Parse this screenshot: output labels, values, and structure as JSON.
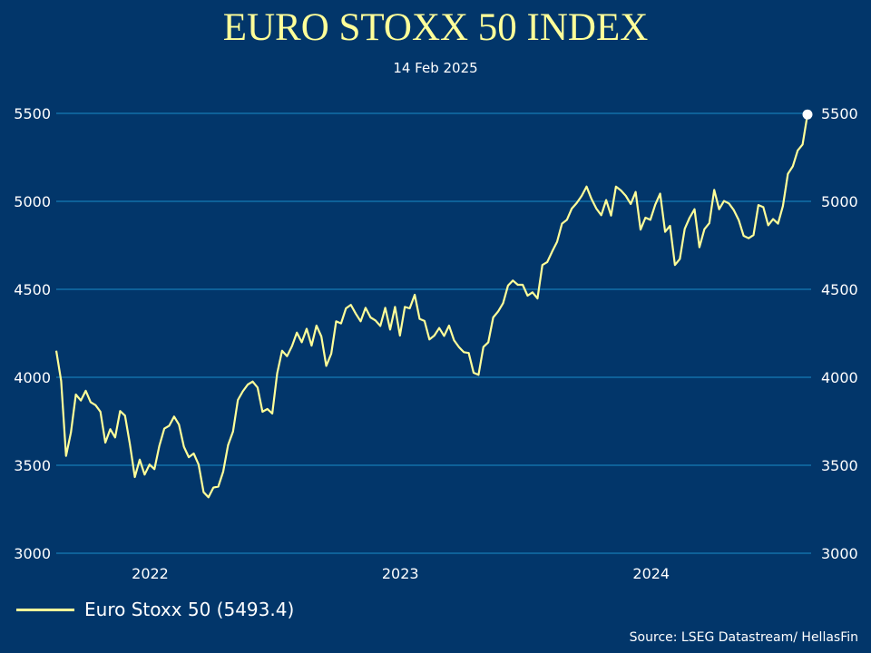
{
  "chart_data": {
    "type": "line",
    "title": "EURO STOXX 50 INDEX",
    "subtitle": "14 Feb 2025",
    "xlabel": "",
    "ylabel": "",
    "xlim": [
      "2022-02-14",
      "2025-02-14"
    ],
    "ylim": [
      3000,
      5500
    ],
    "yticks": [
      "3000",
      "3500",
      "4000",
      "4500",
      "5000",
      "5500"
    ],
    "xticks": [
      {
        "label": "2022",
        "date": "2022-07-01"
      },
      {
        "label": "2023",
        "date": "2023-07-01"
      },
      {
        "label": "2024",
        "date": "2024-07-01"
      }
    ],
    "grid": "horizontal",
    "legend_position": "bottom-left",
    "series": [
      {
        "name": "Euro Stoxx 50 (5493.4)",
        "color": "#ffff99",
        "last_value": 5493.4,
        "values": [
          4151,
          3979,
          3553,
          3687,
          3902,
          3868,
          3923,
          3859,
          3842,
          3804,
          3629,
          3705,
          3658,
          3808,
          3782,
          3619,
          3433,
          3532,
          3447,
          3504,
          3478,
          3610,
          3708,
          3725,
          3777,
          3731,
          3605,
          3546,
          3567,
          3504,
          3347,
          3318,
          3373,
          3379,
          3464,
          3615,
          3691,
          3871,
          3920,
          3959,
          3976,
          3942,
          3804,
          3820,
          3794,
          4022,
          4151,
          4120,
          4177,
          4254,
          4199,
          4276,
          4180,
          4294,
          4232,
          4065,
          4134,
          4318,
          4306,
          4392,
          4412,
          4362,
          4318,
          4395,
          4340,
          4323,
          4292,
          4395,
          4271,
          4400,
          4237,
          4400,
          4392,
          4469,
          4332,
          4320,
          4215,
          4237,
          4280,
          4235,
          4294,
          4211,
          4172,
          4143,
          4138,
          4026,
          4014,
          4172,
          4199,
          4340,
          4375,
          4421,
          4521,
          4550,
          4526,
          4526,
          4464,
          4483,
          4448,
          4638,
          4655,
          4715,
          4770,
          4873,
          4895,
          4959,
          4990,
          5031,
          5084,
          5014,
          4959,
          4921,
          5007,
          4919,
          5084,
          5062,
          5031,
          4985,
          5053,
          4839,
          4907,
          4895,
          4981,
          5044,
          4827,
          4861,
          4638,
          4672,
          4844,
          4907,
          4955,
          4739,
          4842,
          4876,
          5065,
          4955,
          5002,
          4988,
          4950,
          4894,
          4804,
          4790,
          4808,
          4979,
          4967,
          4864,
          4899,
          4873,
          4973,
          5156,
          5199,
          5289,
          5323,
          5493.4
        ]
      }
    ],
    "source": "Source: LSEG Datastream/ HellasFin",
    "colors": {
      "background": "#02366a",
      "grid": "#1a8cc8",
      "line": "#ffff99",
      "end_marker": "#ffffff"
    }
  }
}
